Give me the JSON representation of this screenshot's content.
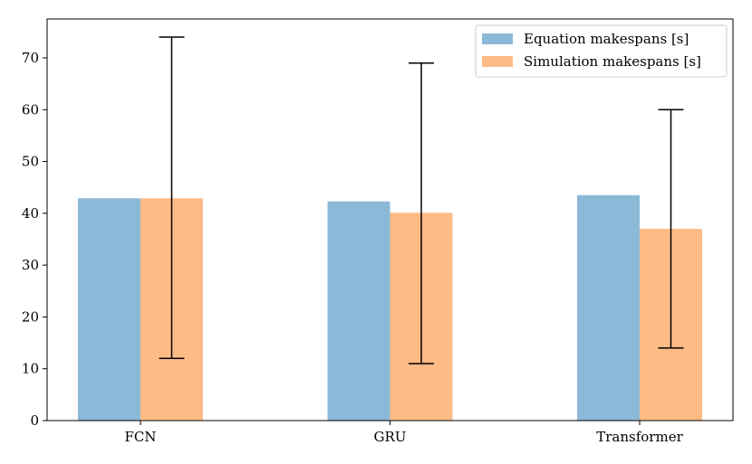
{
  "chart_data": {
    "type": "bar",
    "title": "",
    "xlabel": "",
    "ylabel": "",
    "categories": [
      "FCN",
      "GRU",
      "Transformer"
    ],
    "series": [
      {
        "name": "Equation makespans [s]",
        "values": [
          42.9,
          42.3,
          43.5
        ],
        "color": "#8db9d9"
      },
      {
        "name": "Simulation makespans [s]",
        "values": [
          42.9,
          40.1,
          37.0
        ],
        "color": "#ffbb86"
      }
    ],
    "error_bars": [
      {
        "category": "FCN",
        "low": 12,
        "high": 74
      },
      {
        "category": "GRU",
        "low": 11,
        "high": 69
      },
      {
        "category": "Transformer",
        "low": 14,
        "high": 60
      }
    ],
    "ylim": [
      0,
      77.5
    ],
    "yticks": [
      0,
      10,
      20,
      30,
      40,
      50,
      60,
      70
    ],
    "grid": false,
    "legend_position": "top-right"
  }
}
